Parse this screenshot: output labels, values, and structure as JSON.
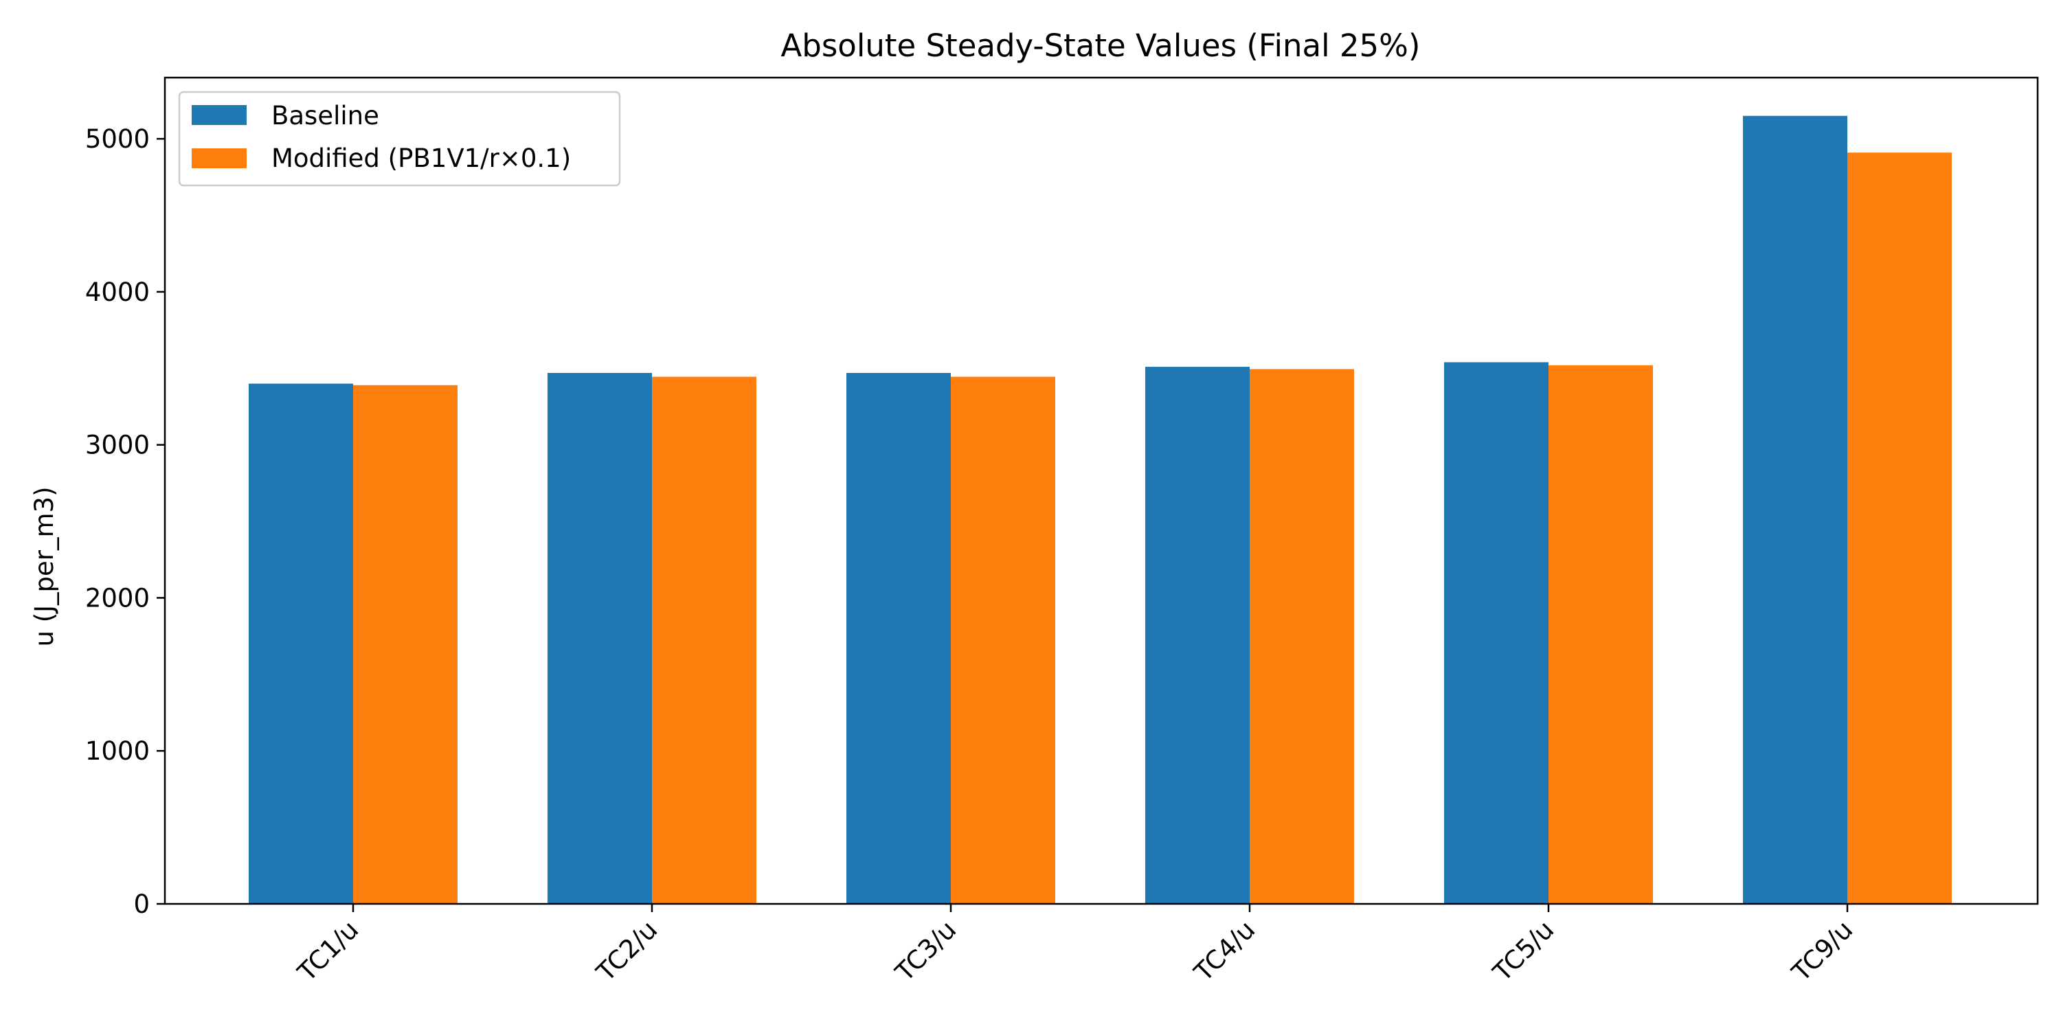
{
  "chart_data": {
    "type": "bar",
    "title": "Absolute Steady-State Values (Final 25%)",
    "xlabel": "",
    "ylabel": "u (J_per_m3)",
    "categories": [
      "TC1/u",
      "TC2/u",
      "TC3/u",
      "TC4/u",
      "TC5/u",
      "TC9/u"
    ],
    "series": [
      {
        "name": "Baseline",
        "color": "#1f77b4",
        "values": [
          3400,
          3470,
          3470,
          3510,
          3540,
          5150
        ]
      },
      {
        "name": "Modified (PB1V1/r×0.1)",
        "color": "#ff7f0e",
        "values": [
          3390,
          3445,
          3445,
          3495,
          3520,
          4910
        ]
      }
    ],
    "ylim": [
      0,
      5400
    ],
    "yticks": [
      0,
      1000,
      2000,
      3000,
      4000,
      5000
    ],
    "ytick_labels": [
      "0",
      "1000",
      "2000",
      "3000",
      "4000",
      "5000"
    ],
    "grid": false,
    "legend_position": "top-left"
  }
}
